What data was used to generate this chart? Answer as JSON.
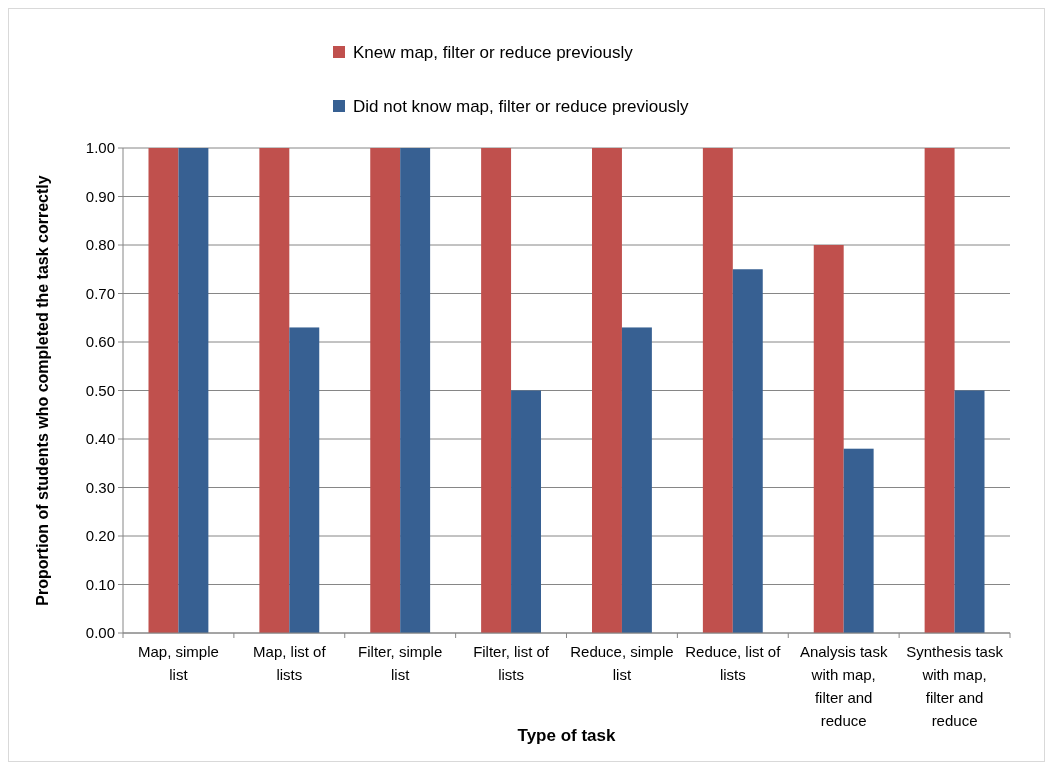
{
  "chart_data": {
    "type": "bar",
    "xlabel": "Type of task",
    "ylabel": "Proportion of students who completed the task correctly",
    "categories": [
      "Map, simple list",
      "Map, list of lists",
      "Filter, simple list",
      "Filter, list of lists",
      "Reduce, simple list",
      "Reduce, list of lists",
      "Analysis task with map, filter and reduce",
      "Synthesis task with map, filter and reduce"
    ],
    "series": [
      {
        "name": "Knew map, filter or reduce previously",
        "color": "#c0504d",
        "values": [
          1,
          1,
          1,
          1,
          1,
          1,
          0.8,
          1
        ]
      },
      {
        "name": "Did not know map, filter or reduce previously",
        "color": "#376092",
        "values": [
          1,
          0.63,
          1,
          0.5,
          0.63,
          0.75,
          0.38,
          0.5
        ]
      }
    ],
    "ylim": [
      0,
      1
    ],
    "yticks": [
      {
        "value": 0,
        "label": "0.00"
      },
      {
        "value": 0.1,
        "label": "0.10"
      },
      {
        "value": 0.2,
        "label": "0.20"
      },
      {
        "value": 0.3,
        "label": "0.30"
      },
      {
        "value": 0.4,
        "label": "0.40"
      },
      {
        "value": 0.5,
        "label": "0.50"
      },
      {
        "value": 0.6,
        "label": "0.60"
      },
      {
        "value": 0.7,
        "label": "0.70"
      },
      {
        "value": 0.8,
        "label": "0.80"
      },
      {
        "value": 0.9,
        "label": "0.90"
      },
      {
        "value": 1,
        "label": "1.00"
      }
    ],
    "grid": "y",
    "legend": "top"
  }
}
